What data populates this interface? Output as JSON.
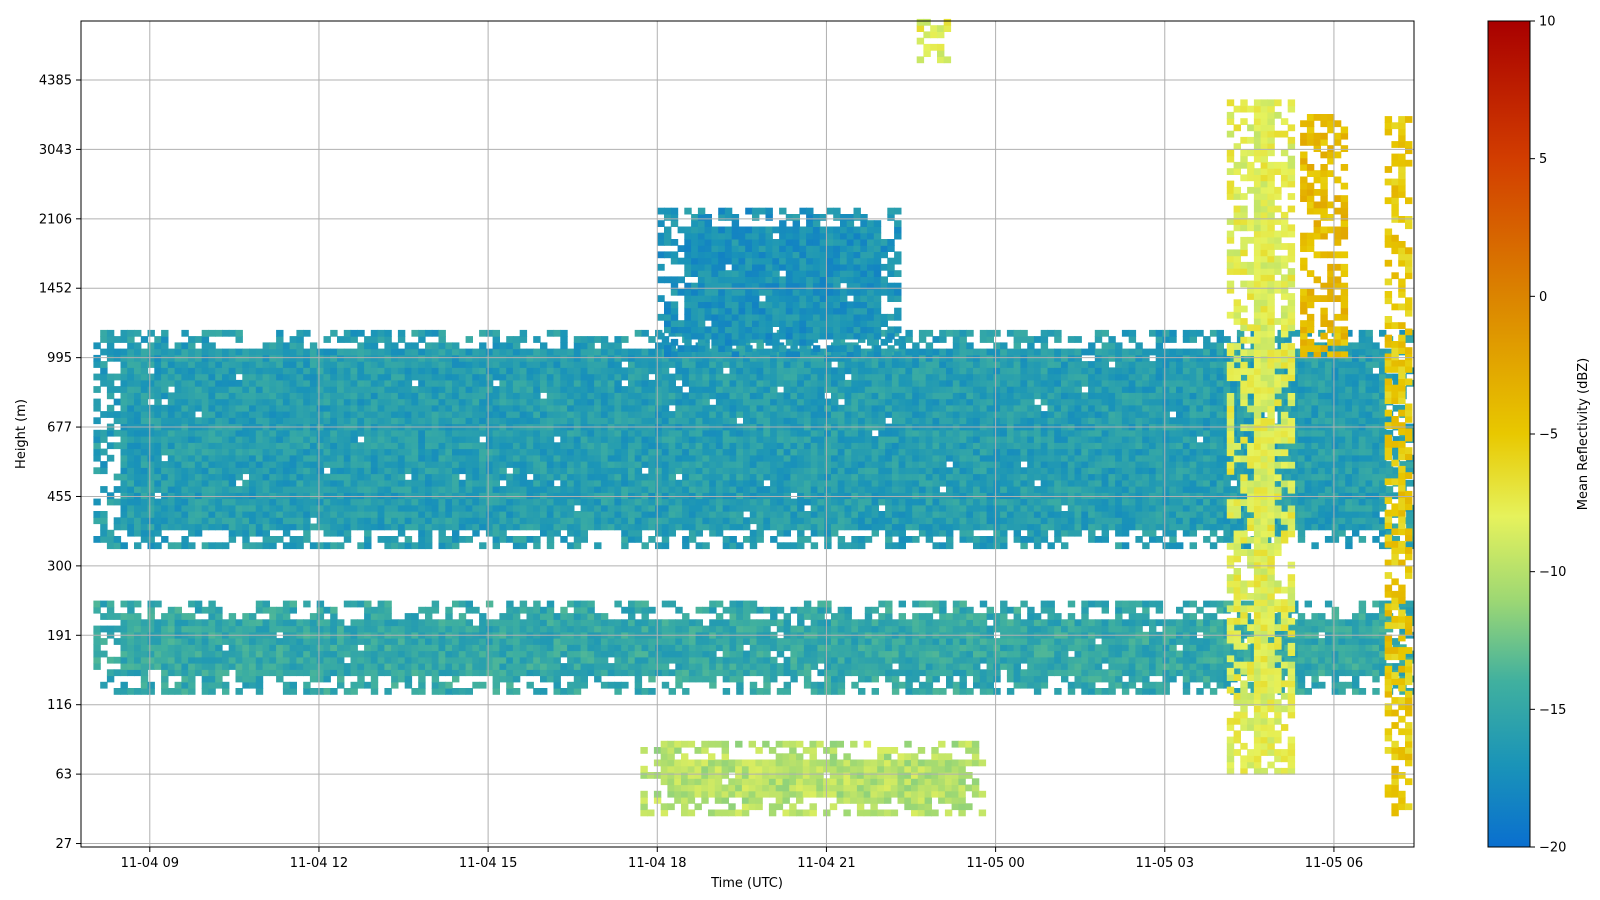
{
  "chart_data": {
    "type": "heatmap",
    "title": "",
    "xlabel": "Time (UTC)",
    "ylabel": "Height (m)",
    "colorbar_label": "Mean Reflectivity (dBZ)",
    "x_ticks": [
      "11-04 09",
      "11-04 12",
      "11-04 15",
      "11-04 18",
      "11-04 21",
      "11-05 00",
      "11-05 03",
      "11-05 06"
    ],
    "x_tick_hours": [
      9,
      12,
      15,
      18,
      21,
      24,
      27,
      30
    ],
    "xlim_hours": [
      7.78,
      31.42
    ],
    "y_ticks": [
      "27",
      "63",
      "116",
      "191",
      "300",
      "455",
      "677",
      "995",
      "1452",
      "2106",
      "3043",
      "4385"
    ],
    "y_tick_index": [
      0,
      1,
      2,
      3,
      4,
      5,
      6,
      7,
      8,
      9,
      10,
      11
    ],
    "ylim_index": [
      -0.05,
      11.85
    ],
    "colorbar": {
      "vmin": -20,
      "vmax": 10,
      "ticks": [
        "10",
        "5",
        "0",
        "−5",
        "−10",
        "−15",
        "−20"
      ],
      "tick_values": [
        10,
        5,
        0,
        -5,
        -10,
        -15,
        -20
      ],
      "colormap_stops": [
        {
          "v": -20,
          "c": "#0a6fcf"
        },
        {
          "v": -17,
          "c": "#1a94b8"
        },
        {
          "v": -14,
          "c": "#40b09f"
        },
        {
          "v": -11,
          "c": "#9ed873"
        },
        {
          "v": -8,
          "c": "#e6f25c"
        },
        {
          "v": -5,
          "c": "#e8c800"
        },
        {
          "v": 0,
          "c": "#db8400"
        },
        {
          "v": 5,
          "c": "#d23d00"
        },
        {
          "v": 10,
          "c": "#a80000"
        }
      ]
    },
    "grid": true,
    "echo_regions": [
      {
        "name": "main cloud layer",
        "t": [
          8.0,
          31.3
        ],
        "h": [
          4.25,
          7.35
        ],
        "dbz": -16
      },
      {
        "name": "low cloud layer",
        "t": [
          8.0,
          31.3
        ],
        "h": [
          2.15,
          3.45
        ],
        "dbz": -15
      },
      {
        "name": "near-surface echo",
        "t": [
          17.7,
          23.8
        ],
        "h": [
          0.4,
          1.4
        ],
        "dbz": -10
      },
      {
        "name": "cloud dome",
        "t": [
          18.0,
          22.3
        ],
        "h": [
          7.0,
          9.1
        ],
        "dbz": -17
      },
      {
        "name": "precipitation shaft 1",
        "t": [
          28.1,
          29.3
        ],
        "h": [
          1.0,
          10.7
        ],
        "dbz": -8
      },
      {
        "name": "precipitation shaft 2",
        "t": [
          29.4,
          30.2
        ],
        "h": [
          7.0,
          10.5
        ],
        "dbz": -4
      },
      {
        "name": "precipitation shaft 3",
        "t": [
          30.9,
          31.3
        ],
        "h": [
          0.4,
          10.5
        ],
        "dbz": -5
      },
      {
        "name": "upper echo patch",
        "t": [
          22.6,
          23.1
        ],
        "h": [
          11.25,
          11.85
        ],
        "dbz": -8
      }
    ]
  }
}
